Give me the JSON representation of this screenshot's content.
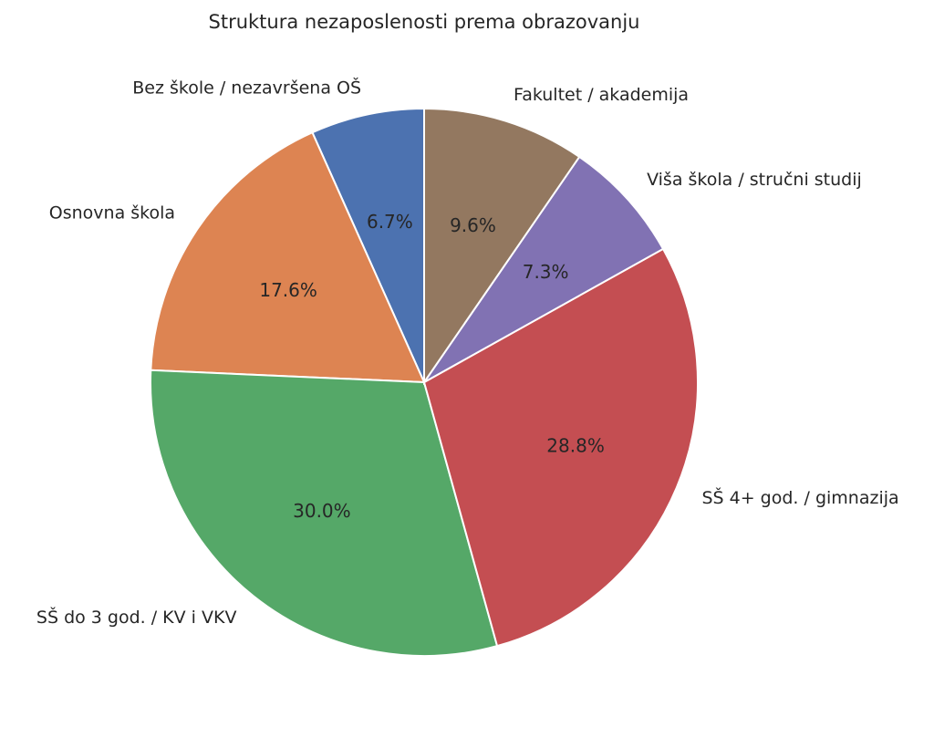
{
  "chart_data": {
    "type": "pie",
    "title": "Struktura nezaposlenosti prema obrazovanju",
    "start_angle_deg": 90,
    "direction": "counterclockwise",
    "slices": [
      {
        "label": "Bez škole / nezavršena OŠ",
        "value": 6.7,
        "pct_label": "6.7%",
        "color": "#4c72b0"
      },
      {
        "label": "Osnovna škola",
        "value": 17.6,
        "pct_label": "17.6%",
        "color": "#dd8452"
      },
      {
        "label": "SŠ do 3 god. / KV i VKV",
        "value": 30.0,
        "pct_label": "30.0%",
        "color": "#55a868"
      },
      {
        "label": "SŠ 4+ god. / gimnazija",
        "value": 28.8,
        "pct_label": "28.8%",
        "color": "#c44e52"
      },
      {
        "label": "Viša škola / stručni studij",
        "value": 7.3,
        "pct_label": "7.3%",
        "color": "#8172b3"
      },
      {
        "label": "Fakultet / akademija",
        "value": 9.6,
        "pct_label": "9.6%",
        "color": "#937860"
      }
    ]
  }
}
